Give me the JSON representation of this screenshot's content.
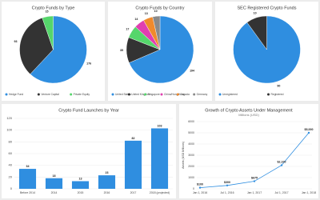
{
  "chart_data": [
    {
      "type": "pie",
      "title": "Crypto Funds by Type",
      "categories": [
        "Hedge Fund",
        "Venture Capital",
        "Private Equity"
      ],
      "values": [
        176,
        93,
        15
      ],
      "colors": [
        "#2f8ee0",
        "#333333",
        "#55d66b"
      ]
    },
    {
      "type": "pie",
      "title": "Crypto Funds by Country",
      "categories": [
        "United States",
        "United Kingdom",
        "Singapore",
        "China/Hong Kong",
        "Canada",
        "Germany"
      ],
      "values": [
        194,
        35,
        17,
        14,
        13,
        10
      ],
      "colors": [
        "#2f8ee0",
        "#333333",
        "#55d66b",
        "#e03fb0",
        "#f08a2c",
        "#8a8a8a"
      ]
    },
    {
      "type": "pie",
      "title": "SEC Registered Crypto Funds",
      "categories": [
        "Unregistered",
        "Registered"
      ],
      "values": [
        90,
        10
      ],
      "colors": [
        "#2f8ee0",
        "#333333"
      ]
    },
    {
      "type": "bar",
      "title": "Crypto Fund Launches by Year",
      "categories": [
        "Before 2014",
        "2014",
        "2015",
        "2016",
        "2017",
        "2018 (projected)"
      ],
      "values": [
        34,
        18,
        13,
        23,
        82,
        103
      ],
      "color": "#2f8ee0",
      "ylim": [
        0,
        120
      ],
      "yticks": [
        0,
        20,
        40,
        60,
        80,
        100,
        120
      ],
      "grid": true
    },
    {
      "type": "line",
      "title": "Growth of Crypto Assets Under Management",
      "subtitle": "Millions (USD)",
      "y_label": "Assets (USD Millions)",
      "categories": [
        "Jan 1, 2016",
        "Jul 1, 2016",
        "Jan 1, 2017",
        "Jul 1, 2017",
        "Jan 1, 2018"
      ],
      "values": [
        100,
        300,
        675,
        2100,
        5000
      ],
      "value_labels": [
        "$100",
        "$300",
        "$675",
        "$2,100",
        "$5,000"
      ],
      "color": "#2f8ee0",
      "ylim": [
        0,
        6000
      ],
      "yticks": [
        0,
        1000,
        2000,
        3000,
        4000,
        5000,
        6000
      ],
      "grid": true
    }
  ]
}
